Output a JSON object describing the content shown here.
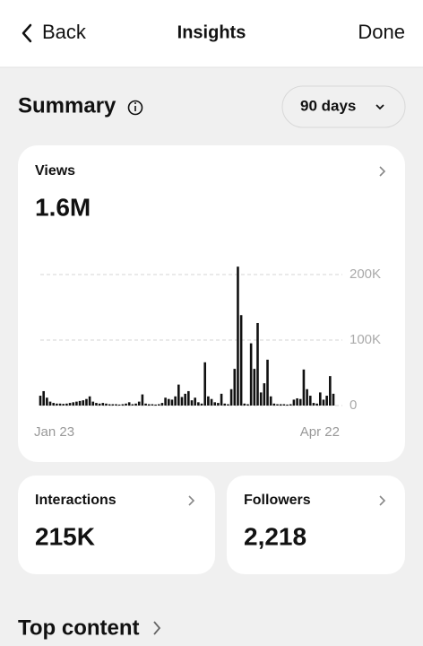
{
  "header": {
    "back": "Back",
    "title": "Insights",
    "done": "Done"
  },
  "summary": {
    "title": "Summary",
    "period": "90 days"
  },
  "views": {
    "label": "Views",
    "value": "1.6M"
  },
  "chart_data": {
    "type": "bar",
    "color": "#111111",
    "grid": true,
    "categories": [
      "Jan 23",
      null,
      null,
      null,
      null,
      null,
      null,
      null,
      null,
      null,
      null,
      null,
      null,
      null,
      null,
      null,
      null,
      null,
      null,
      null,
      null,
      null,
      null,
      null,
      null,
      null,
      null,
      null,
      null,
      null,
      null,
      null,
      null,
      null,
      null,
      null,
      null,
      null,
      null,
      null,
      null,
      null,
      null,
      null,
      null,
      null,
      null,
      null,
      null,
      null,
      null,
      null,
      null,
      null,
      null,
      null,
      null,
      null,
      null,
      null,
      null,
      null,
      null,
      null,
      null,
      null,
      null,
      null,
      null,
      null,
      null,
      null,
      null,
      null,
      null,
      null,
      null,
      null,
      null,
      null,
      null,
      null,
      null,
      null,
      null,
      null,
      null,
      null,
      null,
      "Apr 22"
    ],
    "values": [
      15000,
      22000,
      12000,
      6000,
      4000,
      3000,
      3000,
      2500,
      3000,
      4000,
      5000,
      6000,
      7000,
      8000,
      10000,
      14000,
      6000,
      4000,
      3000,
      4000,
      3000,
      2000,
      2000,
      2000,
      1500,
      2000,
      3000,
      5000,
      2000,
      3000,
      6000,
      17000,
      3000,
      2000,
      2000,
      1500,
      2000,
      4000,
      12000,
      10000,
      9000,
      14000,
      32000,
      13000,
      18000,
      22000,
      8000,
      12000,
      5000,
      3000,
      66000,
      14000,
      10000,
      5000,
      4000,
      18000,
      3000,
      2000,
      25000,
      56000,
      212000,
      138000,
      3000,
      2000,
      95000,
      56000,
      126000,
      20000,
      34000,
      70000,
      14000,
      3000,
      2000,
      2000,
      2000,
      1500,
      2000,
      9000,
      11000,
      10000,
      55000,
      25000,
      15000,
      4000,
      3000,
      20000,
      9000,
      15000,
      45000,
      18000
    ],
    "ylim": [
      0,
      215000
    ],
    "yticks": [
      0,
      {
        "value": 100000,
        "label": "100K"
      },
      {
        "value": 200000,
        "label": "200K"
      }
    ]
  },
  "interactions": {
    "label": "Interactions",
    "value": "215K"
  },
  "followers": {
    "label": "Followers",
    "value": "2,218"
  },
  "top_content": {
    "title": "Top content"
  }
}
